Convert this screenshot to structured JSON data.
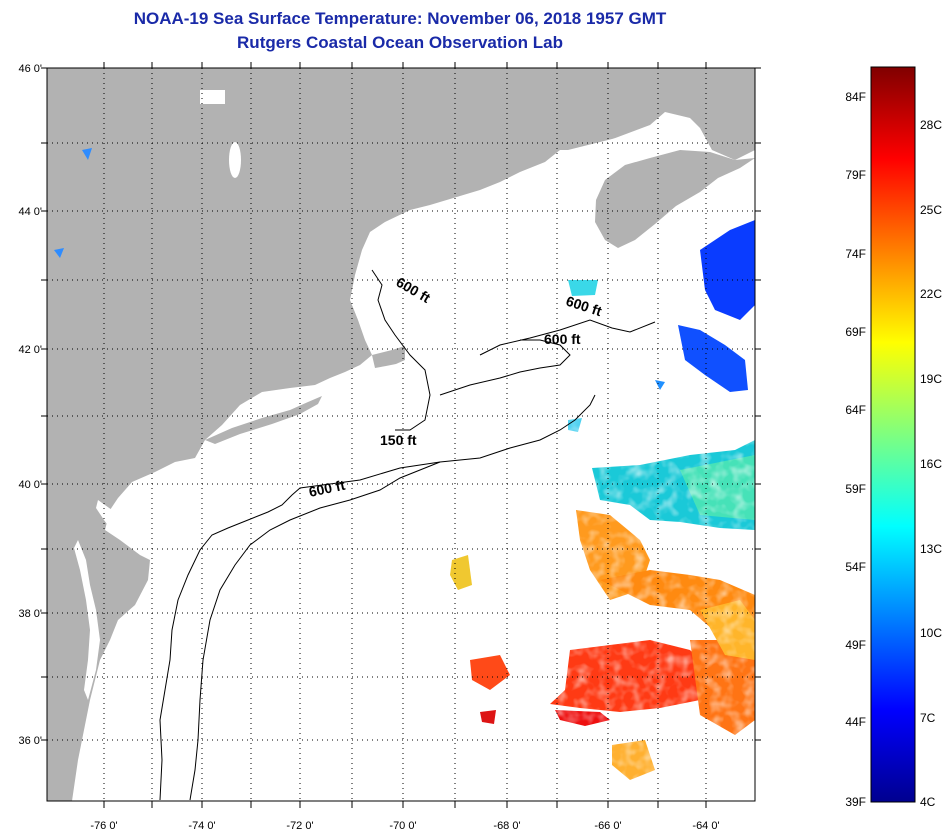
{
  "title": "NOAA-19 Sea Surface Temperature:  November 06, 2018 1957 GMT",
  "subtitle": "Rutgers Coastal Ocean Observation Lab",
  "map": {
    "lat_labels": [
      "46 0'",
      "44 0'",
      "42 0'",
      "40 0'",
      "38 0'",
      "36 0'"
    ],
    "lon_labels": [
      "-76 0'",
      "-74 0'",
      "-72 0'",
      "-70 0'",
      "-68 0'",
      "-66 0'",
      "-64 0'"
    ],
    "contour_labels": [
      "600 ft",
      "600 ft",
      "600 ft",
      "150 ft",
      "600 ft"
    ],
    "colors": {
      "land": "#b2b2b2",
      "water_nodata": "#ffffff",
      "frame": "#000000"
    }
  },
  "colorbar": {
    "fahrenheit_labels": [
      "84F",
      "79F",
      "74F",
      "69F",
      "64F",
      "59F",
      "54F",
      "49F",
      "44F",
      "39F"
    ],
    "celsius_labels": [
      "28C",
      "25C",
      "22C",
      "19C",
      "16C",
      "13C",
      "10C",
      "7C",
      "4C"
    ],
    "range_c": [
      4,
      30
    ],
    "colormap": "jet"
  },
  "colors": {
    "title": "#1a2aa8"
  }
}
